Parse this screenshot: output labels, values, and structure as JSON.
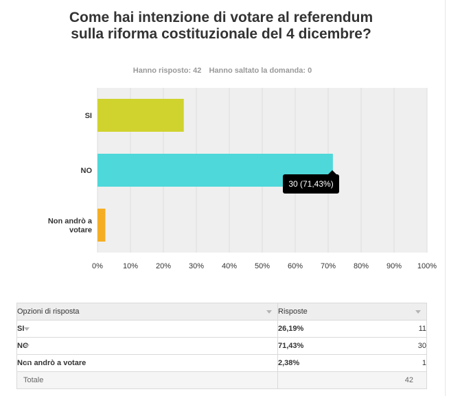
{
  "survey": {
    "title": "Come hai intenzione di votare al referendum sulla riforma costituzionale del 4 dicembre?",
    "answered": "Hanno risposto: 42",
    "skipped": "Hanno saltato la domanda: 0"
  },
  "chart_data": {
    "type": "bar",
    "orientation": "horizontal",
    "categories": [
      "SI",
      "NO",
      "Non andrò a votare"
    ],
    "values": [
      26.19,
      71.43,
      2.38
    ],
    "colors": [
      "#d0d32e",
      "#4ed8da",
      "#f5ae24"
    ],
    "xlim": [
      0,
      100
    ],
    "xticks": [
      "0%",
      "10%",
      "20%",
      "30%",
      "40%",
      "50%",
      "60%",
      "70%",
      "80%",
      "90%",
      "100%"
    ],
    "grid": true,
    "tooltip": "30 (71,43%)"
  },
  "table": {
    "headers": [
      "Opzioni di risposta",
      "Risposte"
    ],
    "rows": [
      {
        "option": "SI",
        "percent": "26,19%",
        "count": "11"
      },
      {
        "option": "NO",
        "percent": "71,43%",
        "count": "30"
      },
      {
        "option": "Non andrò a votare",
        "percent": "2,38%",
        "count": "1"
      }
    ],
    "total_label": "Totale",
    "total_value": "42"
  }
}
